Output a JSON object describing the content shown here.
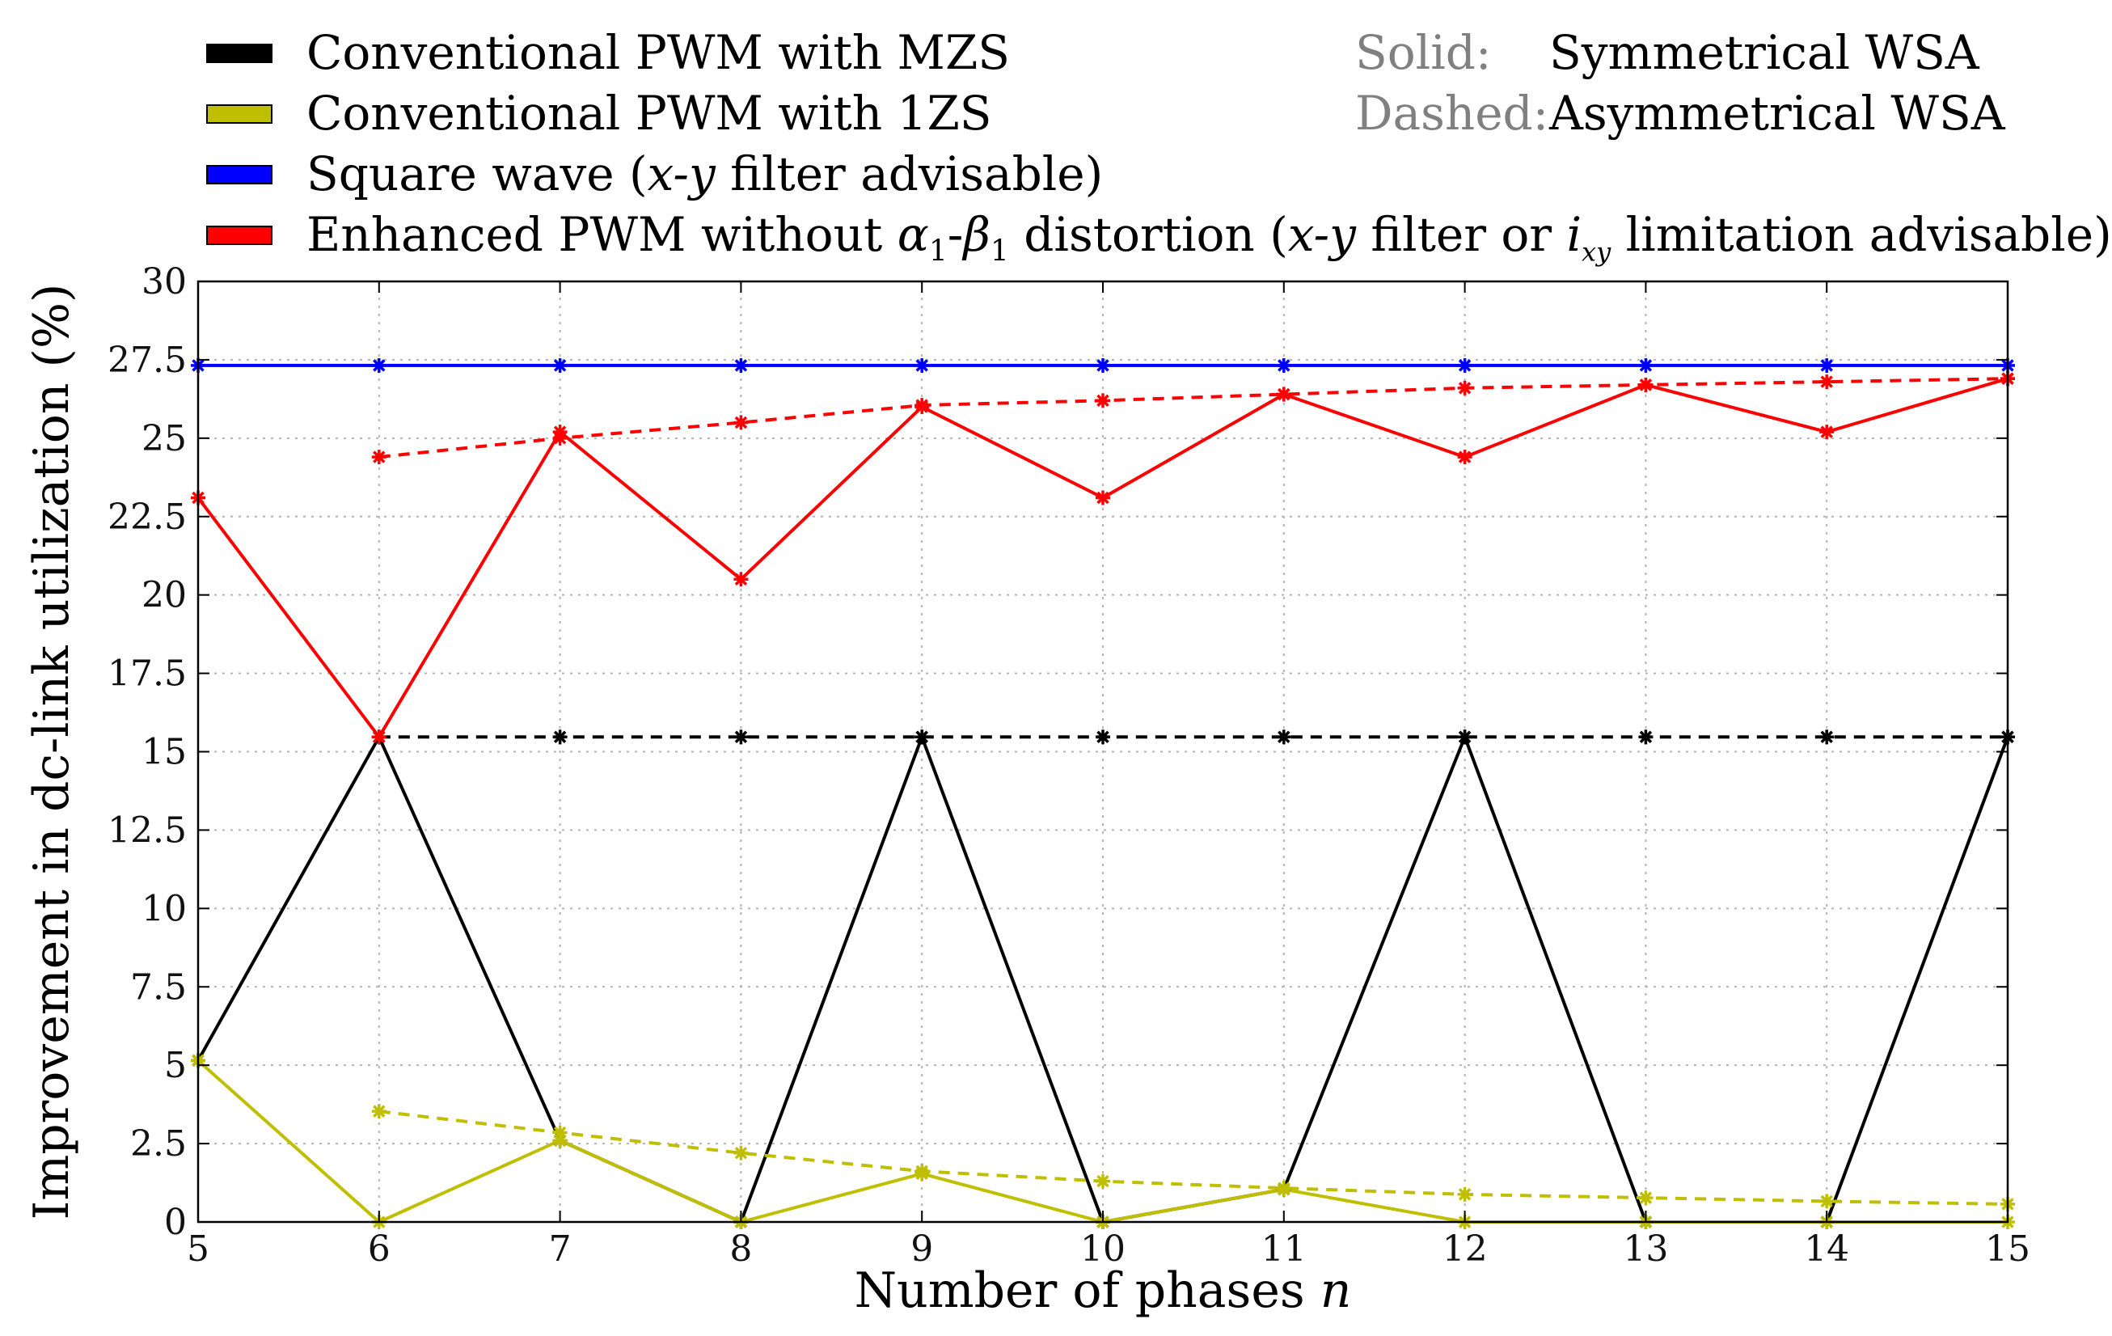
{
  "chart_data": {
    "type": "line",
    "xlabel": "Number of phases",
    "xlabel_var": "n",
    "ylabel": "Improvement in dc-link utilization (%)",
    "x": [
      5,
      6,
      7,
      8,
      9,
      10,
      11,
      12,
      13,
      14,
      15
    ],
    "xlim": [
      5,
      15
    ],
    "ylim": [
      0,
      30
    ],
    "yticks": [
      0,
      2.5,
      5,
      7.5,
      10,
      12.5,
      15,
      17.5,
      20,
      22.5,
      25,
      27.5,
      30
    ],
    "ytick_labels": [
      "0",
      "2.5",
      "5",
      "7.5",
      "10",
      "12.5",
      "15",
      "17.5",
      "20",
      "22.5",
      "25",
      "27.5",
      "30"
    ],
    "xtick_labels": [
      "5",
      "6",
      "7",
      "8",
      "9",
      "10",
      "11",
      "12",
      "13",
      "14",
      "15"
    ],
    "grid": true,
    "legend": [
      {
        "label": "Conventional PWM with MZS",
        "color": "#000000"
      },
      {
        "label": "Conventional PWM with 1ZS",
        "color": "#bfbf00"
      },
      {
        "label": "Square wave (x-y filter advisable)",
        "color": "#0000ff"
      },
      {
        "label": "Enhanced PWM without α1-β1 distortion (x-y filter or ixy limitation advisable)",
        "color": "#ff0000"
      }
    ],
    "style_key": [
      {
        "key": "Solid:",
        "value": "Symmetrical WSA"
      },
      {
        "key": "Dashed:",
        "value": "Asymmetrical WSA"
      }
    ],
    "series": [
      {
        "name": "Conventional PWM with MZS (Symmetrical WSA)",
        "color": "#000000",
        "dash": false,
        "points": [
          [
            5,
            5.15
          ],
          [
            6,
            15.47
          ],
          [
            7,
            2.6
          ],
          [
            8,
            0
          ],
          [
            9,
            15.47
          ],
          [
            10,
            0
          ],
          [
            11,
            1.04
          ],
          [
            12,
            15.47
          ],
          [
            13,
            0
          ],
          [
            14,
            0
          ],
          [
            15,
            15.47
          ]
        ]
      },
      {
        "name": "Conventional PWM with MZS (Asymmetrical WSA)",
        "color": "#000000",
        "dash": true,
        "points": [
          [
            6,
            15.47
          ],
          [
            7,
            15.47
          ],
          [
            8,
            15.47
          ],
          [
            9,
            15.47
          ],
          [
            10,
            15.47
          ],
          [
            11,
            15.47
          ],
          [
            12,
            15.47
          ],
          [
            13,
            15.47
          ],
          [
            14,
            15.47
          ],
          [
            15,
            15.47
          ]
        ]
      },
      {
        "name": "Conventional PWM with 1ZS (Symmetrical WSA)",
        "color": "#bfbf00",
        "dash": false,
        "points": [
          [
            5,
            5.15
          ],
          [
            6,
            0
          ],
          [
            7,
            2.6
          ],
          [
            8,
            0
          ],
          [
            9,
            1.54
          ],
          [
            10,
            0
          ],
          [
            11,
            1.04
          ],
          [
            12,
            0
          ],
          [
            13,
            0
          ],
          [
            14,
            0
          ],
          [
            15,
            0
          ]
        ]
      },
      {
        "name": "Conventional PWM with 1ZS (Asymmetrical WSA)",
        "color": "#bfbf00",
        "dash": true,
        "points": [
          [
            6,
            3.53
          ],
          [
            7,
            2.85
          ],
          [
            8,
            2.2
          ],
          [
            9,
            1.62
          ],
          [
            10,
            1.3
          ],
          [
            11,
            1.08
          ],
          [
            12,
            0.88
          ],
          [
            13,
            0.77
          ],
          [
            14,
            0.66
          ],
          [
            15,
            0.57
          ]
        ]
      },
      {
        "name": "Square wave",
        "color": "#0000ff",
        "dash": false,
        "points": [
          [
            5,
            27.32
          ],
          [
            6,
            27.32
          ],
          [
            7,
            27.32
          ],
          [
            8,
            27.32
          ],
          [
            9,
            27.32
          ],
          [
            10,
            27.32
          ],
          [
            11,
            27.32
          ],
          [
            12,
            27.32
          ],
          [
            13,
            27.32
          ],
          [
            14,
            27.32
          ],
          [
            15,
            27.32
          ]
        ]
      },
      {
        "name": "Enhanced PWM (Symmetrical WSA)",
        "color": "#ff0000",
        "dash": false,
        "points": [
          [
            5,
            23.1
          ],
          [
            6,
            15.47
          ],
          [
            7,
            25.2
          ],
          [
            8,
            20.5
          ],
          [
            9,
            26.0
          ],
          [
            10,
            23.1
          ],
          [
            11,
            26.4
          ],
          [
            12,
            24.4
          ],
          [
            13,
            26.7
          ],
          [
            14,
            25.2
          ],
          [
            15,
            26.9
          ]
        ]
      },
      {
        "name": "Enhanced PWM (Asymmetrical WSA)",
        "color": "#ff0000",
        "dash": true,
        "points": [
          [
            6,
            24.4
          ],
          [
            7,
            25.0
          ],
          [
            8,
            25.5
          ],
          [
            9,
            26.05
          ],
          [
            10,
            26.2
          ],
          [
            11,
            26.4
          ],
          [
            12,
            26.6
          ],
          [
            13,
            26.7
          ],
          [
            14,
            26.8
          ],
          [
            15,
            26.9
          ]
        ]
      }
    ]
  },
  "legend_text": {
    "l1": "Conventional PWM with MZS",
    "l2": "Conventional PWM with 1ZS",
    "l3_a": "Square wave (",
    "l3_b": "x-y",
    "l3_c": " filter advisable)",
    "l4_a": "Enhanced PWM without ",
    "l4_alpha": "α",
    "l4_sub1": "1",
    "l4_dash": "-",
    "l4_beta": "β",
    "l4_sub2": "1",
    "l4_b": " distortion (",
    "l4_xy": "x-y",
    "l4_c": " filter or ",
    "l4_i": "i",
    "l4_isub": "xy",
    "l4_d": " limitation advisable)"
  }
}
